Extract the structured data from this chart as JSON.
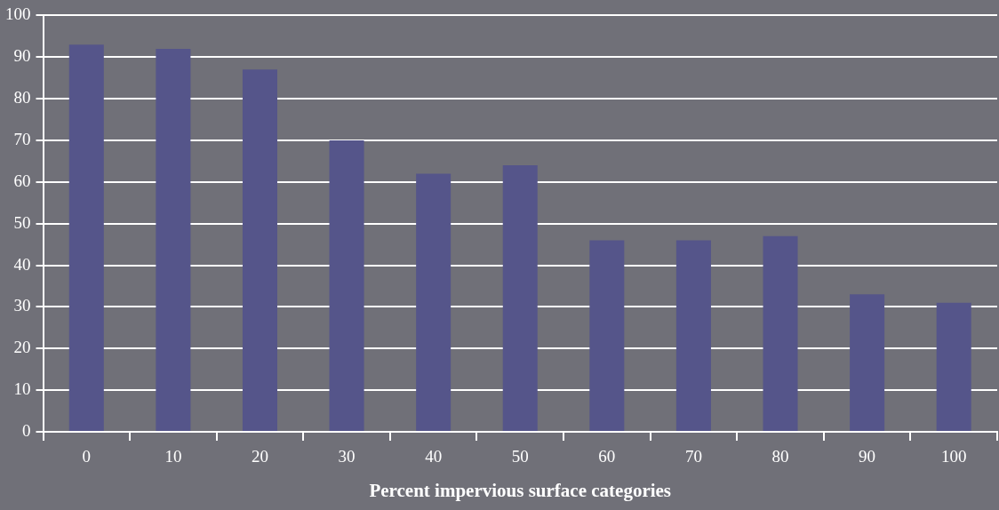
{
  "chart_data": {
    "type": "bar",
    "xlabel": "Percent impervious surface categories",
    "categories": [
      "0",
      "10",
      "20",
      "30",
      "40",
      "50",
      "60",
      "70",
      "80",
      "90",
      "100"
    ],
    "values": [
      93,
      92,
      87,
      70,
      62,
      64,
      46,
      46,
      47,
      33,
      31
    ],
    "color": "#55558a",
    "ylim": [
      0,
      100
    ],
    "yticks": [
      0,
      10,
      20,
      30,
      40,
      50,
      60,
      70,
      80,
      90,
      100
    ],
    "grid": "y",
    "legend": false
  }
}
